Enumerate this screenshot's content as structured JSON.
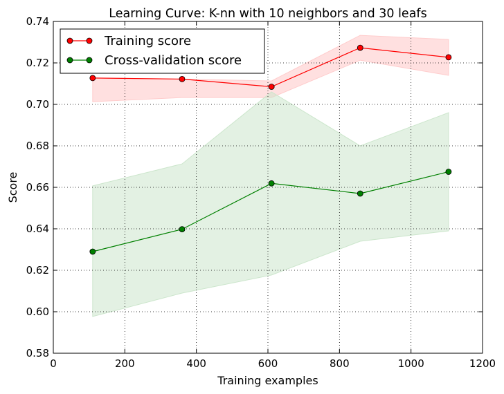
{
  "chart_data": {
    "type": "line",
    "title": "Learning Curve: K-nn with 10 neighbors and 30 leafs",
    "xlabel": "Training examples",
    "ylabel": "Score",
    "xlim": [
      0,
      1200
    ],
    "ylim": [
      0.58,
      0.74
    ],
    "xticks": [
      "0",
      "200",
      "400",
      "600",
      "800",
      "1000",
      "1200"
    ],
    "yticks": [
      "0.58",
      "0.60",
      "0.62",
      "0.64",
      "0.66",
      "0.68",
      "0.70",
      "0.72",
      "0.74"
    ],
    "grid": true,
    "legend_position": "top-left",
    "x": [
      110,
      360,
      610,
      858,
      1105
    ],
    "series": [
      {
        "name": "Training score",
        "color": "#ff0000",
        "marker": "circle",
        "values": [
          0.7127,
          0.7122,
          0.7085,
          0.7273,
          0.7227
        ],
        "band_lower": [
          0.7013,
          0.7033,
          0.7033,
          0.7213,
          0.714
        ],
        "band_upper": [
          0.7127,
          0.7122,
          0.7113,
          0.7333,
          0.7313
        ],
        "band_color": "#ffcccc"
      },
      {
        "name": "Cross-validation score",
        "color": "#008000",
        "marker": "circle",
        "values": [
          0.629,
          0.6398,
          0.6619,
          0.657,
          0.6675
        ],
        "band_lower": [
          0.5977,
          0.609,
          0.6177,
          0.634,
          0.639
        ],
        "band_upper": [
          0.6607,
          0.6713,
          0.706,
          0.68,
          0.696
        ],
        "band_color": "#cce6cc"
      }
    ]
  }
}
